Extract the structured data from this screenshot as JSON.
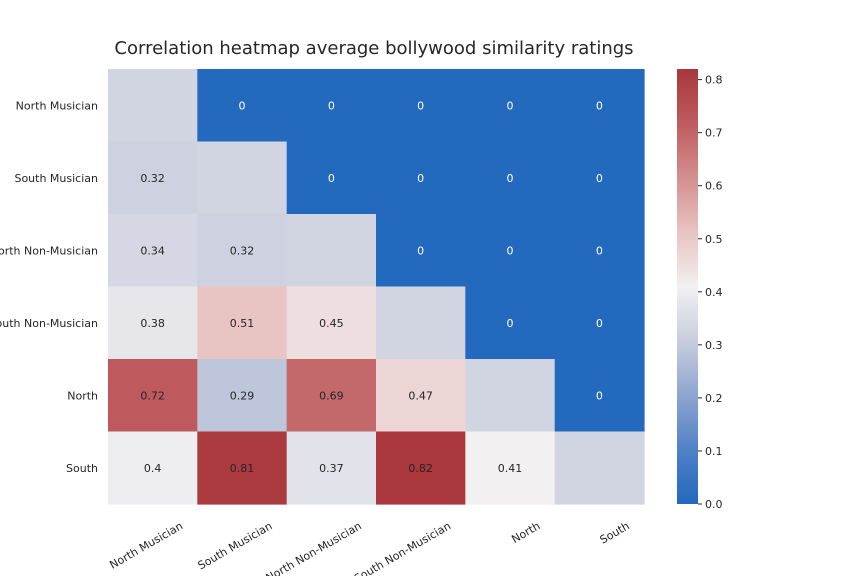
{
  "chart_data": {
    "type": "heatmap",
    "title": "Correlation heatmap average bollywood similarity ratings",
    "xlabel": "",
    "ylabel": "",
    "x_categories": [
      "North Musician",
      "South Musician",
      "North Non-Musician",
      "South Non-Musician",
      "North",
      "South"
    ],
    "y_categories": [
      "North Musician",
      "South Musician",
      "North Non-Musician",
      "South Non-Musician",
      "North",
      "South"
    ],
    "values": [
      [
        null,
        0,
        0,
        0,
        0,
        0
      ],
      [
        0.32,
        null,
        0,
        0,
        0,
        0
      ],
      [
        0.34,
        0.32,
        null,
        0,
        0,
        0
      ],
      [
        0.38,
        0.51,
        0.45,
        null,
        0,
        0
      ],
      [
        0.72,
        0.29,
        0.69,
        0.47,
        null,
        0
      ],
      [
        0.4,
        0.81,
        0.37,
        0.82,
        0.41,
        null
      ]
    ],
    "annotations": [
      [
        "",
        "0",
        "0",
        "0",
        "0",
        "0"
      ],
      [
        "0.32",
        "",
        "0",
        "0",
        "0",
        "0"
      ],
      [
        "0.34",
        "0.32",
        "",
        "0",
        "0",
        "0"
      ],
      [
        "0.38",
        "0.51",
        "0.45",
        "",
        "0",
        "0"
      ],
      [
        "0.72",
        "0.29",
        "0.69",
        "0.47",
        "",
        "0"
      ],
      [
        "0.4",
        "0.81",
        "0.37",
        "0.82",
        "0.41",
        ""
      ]
    ],
    "diagonal_value": 0.33,
    "colorbar": {
      "min": 0,
      "max": 0.82,
      "ticks": [
        "0.0",
        "0.1",
        "0.2",
        "0.3",
        "0.4",
        "0.5",
        "0.6",
        "0.7",
        "0.8"
      ],
      "colormap": "vlag"
    },
    "colors": {
      "low": "#2369bd",
      "mid": "#f7f7f7",
      "high": "#a9373b"
    },
    "xtick_rotation": 30,
    "grid": false,
    "legend": "colorbar-right"
  }
}
